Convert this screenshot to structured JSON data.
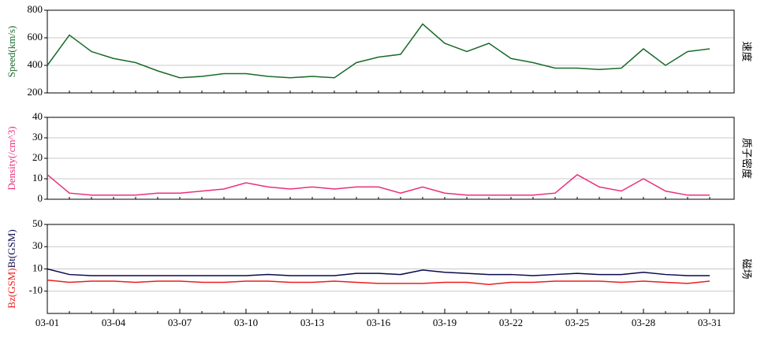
{
  "chart_data": [
    {
      "type": "line",
      "ylabel": "Speed(km/s)",
      "side_label": "速度",
      "x": [
        "03-01",
        "03-02",
        "03-03",
        "03-04",
        "03-05",
        "03-06",
        "03-07",
        "03-08",
        "03-09",
        "03-10",
        "03-11",
        "03-12",
        "03-13",
        "03-14",
        "03-15",
        "03-16",
        "03-17",
        "03-18",
        "03-19",
        "03-20",
        "03-21",
        "03-22",
        "03-23",
        "03-24",
        "03-25",
        "03-26",
        "03-27",
        "03-28",
        "03-29",
        "03-30",
        "03-31"
      ],
      "series": [
        {
          "name": "Speed",
          "color": "#1a6b2a",
          "values": [
            400,
            620,
            500,
            450,
            420,
            360,
            310,
            320,
            340,
            340,
            320,
            310,
            320,
            310,
            420,
            460,
            480,
            700,
            560,
            500,
            560,
            450,
            420,
            380,
            380,
            370,
            380,
            520,
            400,
            500,
            520
          ]
        }
      ],
      "ylim": [
        200,
        800
      ],
      "yticks": [
        200,
        400,
        600,
        800
      ],
      "grid": true
    },
    {
      "type": "line",
      "ylabel": "Density(/cm^3)",
      "side_label": "质子密度",
      "x": [
        "03-01",
        "03-02",
        "03-03",
        "03-04",
        "03-05",
        "03-06",
        "03-07",
        "03-08",
        "03-09",
        "03-10",
        "03-11",
        "03-12",
        "03-13",
        "03-14",
        "03-15",
        "03-16",
        "03-17",
        "03-18",
        "03-19",
        "03-20",
        "03-21",
        "03-22",
        "03-23",
        "03-24",
        "03-25",
        "03-26",
        "03-27",
        "03-28",
        "03-29",
        "03-30",
        "03-31"
      ],
      "series": [
        {
          "name": "Density",
          "color": "#e8307a",
          "values": [
            12,
            3,
            2,
            2,
            2,
            3,
            3,
            4,
            5,
            8,
            6,
            5,
            6,
            5,
            6,
            6,
            3,
            6,
            3,
            2,
            2,
            2,
            2,
            3,
            12,
            6,
            4,
            10,
            4,
            2,
            2
          ]
        }
      ],
      "ylim": [
        0,
        40
      ],
      "yticks": [
        0,
        10,
        20,
        30,
        40
      ],
      "grid": true
    },
    {
      "type": "line",
      "side_label": "磁场",
      "x": [
        "03-01",
        "03-02",
        "03-03",
        "03-04",
        "03-05",
        "03-06",
        "03-07",
        "03-08",
        "03-09",
        "03-10",
        "03-11",
        "03-12",
        "03-13",
        "03-14",
        "03-15",
        "03-16",
        "03-17",
        "03-18",
        "03-19",
        "03-20",
        "03-21",
        "03-22",
        "03-23",
        "03-24",
        "03-25",
        "03-26",
        "03-27",
        "03-28",
        "03-29",
        "03-30",
        "03-31"
      ],
      "series": [
        {
          "name": "Bz(GSM)",
          "color": "#ee1c1c",
          "values": [
            0,
            -2,
            -1,
            -1,
            -2,
            -1,
            -1,
            -2,
            -2,
            -1,
            -1,
            -2,
            -2,
            -1,
            -2,
            -3,
            -3,
            -3,
            -2,
            -2,
            -4,
            -2,
            -2,
            -1,
            -1,
            -1,
            -2,
            -1,
            -2,
            -3,
            -1
          ]
        },
        {
          "name": "Bt(GSM)",
          "color": "#0a0a4a",
          "values": [
            10,
            5,
            4,
            4,
            4,
            4,
            4,
            4,
            4,
            4,
            5,
            4,
            4,
            4,
            6,
            6,
            5,
            9,
            7,
            6,
            5,
            5,
            4,
            5,
            6,
            5,
            5,
            7,
            5,
            4,
            4
          ]
        }
      ],
      "ylim": [
        -30,
        50
      ],
      "yticks": [
        -10,
        10,
        30,
        50
      ],
      "grid": true,
      "xticks": [
        "03-01",
        "03-04",
        "03-07",
        "03-10",
        "03-13",
        "03-16",
        "03-19",
        "03-22",
        "03-25",
        "03-28",
        "03-31"
      ]
    }
  ]
}
